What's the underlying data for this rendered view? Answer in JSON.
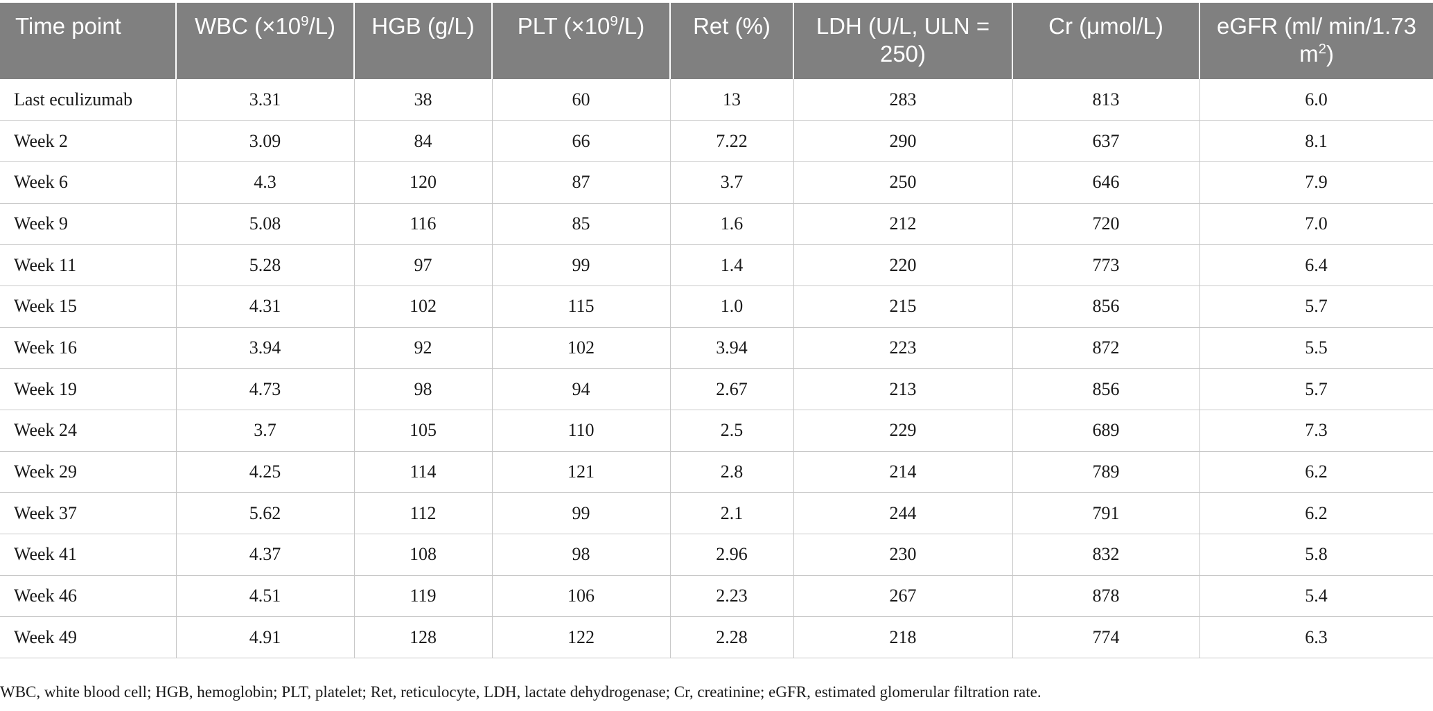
{
  "table": {
    "columns": [
      {
        "pre": "Time point",
        "sup": "",
        "post": ""
      },
      {
        "pre": "WBC (×10",
        "sup": "9",
        "post": "/L)"
      },
      {
        "pre": "HGB (g/L)",
        "sup": "",
        "post": ""
      },
      {
        "pre": "PLT (×10",
        "sup": "9",
        "post": "/L)"
      },
      {
        "pre": "Ret (%)",
        "sup": "",
        "post": ""
      },
      {
        "pre": "LDH (U/L, ULN = 250)",
        "sup": "",
        "post": ""
      },
      {
        "pre": "Cr (μmol/L)",
        "sup": "",
        "post": ""
      },
      {
        "pre": "eGFR (ml/ min/1.73 m",
        "sup": "2",
        "post": ")"
      }
    ],
    "rows": [
      [
        "Last eculizumab",
        "3.31",
        "38",
        "60",
        "13",
        "283",
        "813",
        "6.0"
      ],
      [
        "Week 2",
        "3.09",
        "84",
        "66",
        "7.22",
        "290",
        "637",
        "8.1"
      ],
      [
        "Week 6",
        "4.3",
        "120",
        "87",
        "3.7",
        "250",
        "646",
        "7.9"
      ],
      [
        "Week 9",
        "5.08",
        "116",
        "85",
        "1.6",
        "212",
        "720",
        "7.0"
      ],
      [
        "Week 11",
        "5.28",
        "97",
        "99",
        "1.4",
        "220",
        "773",
        "6.4"
      ],
      [
        "Week 15",
        "4.31",
        "102",
        "115",
        "1.0",
        "215",
        "856",
        "5.7"
      ],
      [
        "Week 16",
        "3.94",
        "92",
        "102",
        "3.94",
        "223",
        "872",
        "5.5"
      ],
      [
        "Week 19",
        "4.73",
        "98",
        "94",
        "2.67",
        "213",
        "856",
        "5.7"
      ],
      [
        "Week 24",
        "3.7",
        "105",
        "110",
        "2.5",
        "229",
        "689",
        "7.3"
      ],
      [
        "Week 29",
        "4.25",
        "114",
        "121",
        "2.8",
        "214",
        "789",
        "6.2"
      ],
      [
        "Week 37",
        "5.62",
        "112",
        "99",
        "2.1",
        "244",
        "791",
        "6.2"
      ],
      [
        "Week 41",
        "4.37",
        "108",
        "98",
        "2.96",
        "230",
        "832",
        "5.8"
      ],
      [
        "Week 46",
        "4.51",
        "119",
        "106",
        "2.23",
        "267",
        "878",
        "5.4"
      ],
      [
        "Week 49",
        "4.91",
        "128",
        "122",
        "2.28",
        "218",
        "774",
        "6.3"
      ]
    ]
  },
  "footnote": "WBC, white blood cell; HGB, hemoglobin; PLT, platelet; Ret, reticulocyte, LDH, lactate dehydrogenase; Cr, creatinine; eGFR, estimated glomerular filtration rate.",
  "colors": {
    "header_bg": "#808080",
    "header_text": "#ffffff",
    "grid": "#c8c8c8"
  }
}
